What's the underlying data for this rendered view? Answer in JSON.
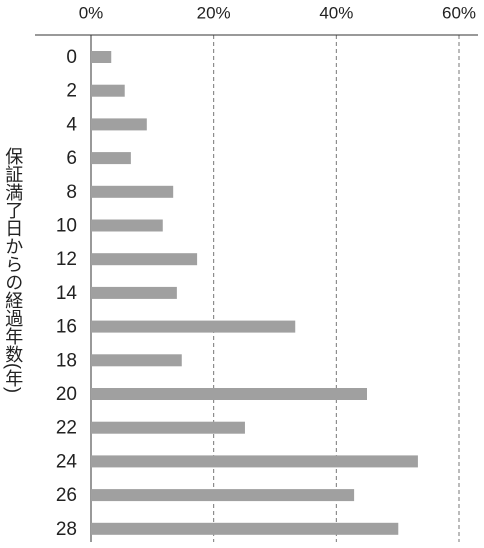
{
  "chart_data": {
    "type": "bar",
    "orientation": "horizontal",
    "y_label": "保証満了日からの経過年数(年)",
    "categories": [
      "0",
      "2",
      "4",
      "6",
      "8",
      "10",
      "12",
      "14",
      "16",
      "18",
      "20",
      "22",
      "24",
      "26",
      "28"
    ],
    "values": [
      3.3,
      5.5,
      9.1,
      6.5,
      13.4,
      11.7,
      17.3,
      14.0,
      33.3,
      14.8,
      45.0,
      25.1,
      53.3,
      42.9,
      50.1
    ],
    "color": "#a0a0a0",
    "xlim": [
      0,
      60
    ],
    "xticks": [
      {
        "value": 0,
        "label": "0%"
      },
      {
        "value": 20,
        "label": "20%"
      },
      {
        "value": 40,
        "label": "40%"
      },
      {
        "value": 60,
        "label": "60%"
      }
    ],
    "grid": true
  }
}
